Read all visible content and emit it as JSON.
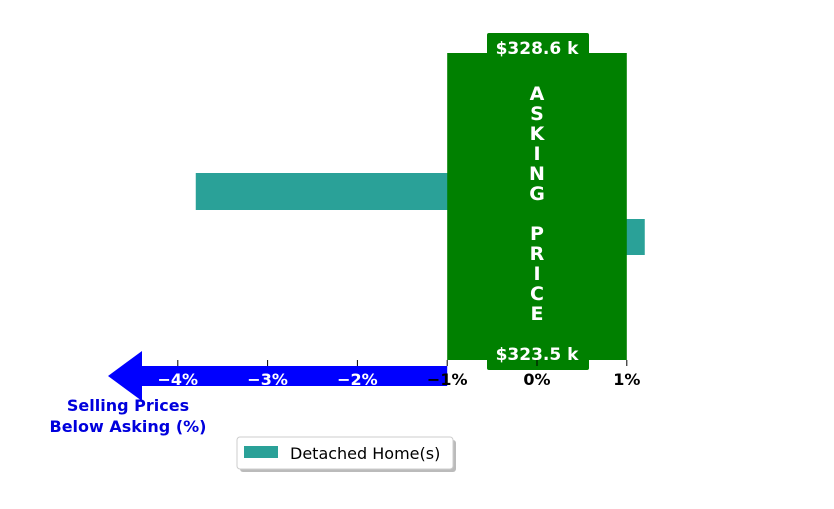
{
  "chart_data": {
    "type": "bar",
    "orientation": "horizontal",
    "series": [
      {
        "name": "Detached Home(s)",
        "color": "#2aa198",
        "values": [
          -3.8,
          1.2
        ]
      }
    ],
    "xlim": [
      -5,
      1.5
    ],
    "xticks": [
      {
        "value": -4,
        "label": "−4%"
      },
      {
        "value": -3,
        "label": "−3%"
      },
      {
        "value": -2,
        "label": "−2%"
      },
      {
        "value": -1,
        "label": "−1%"
      },
      {
        "value": 0,
        "label": "0%"
      },
      {
        "value": 1,
        "label": "1%"
      }
    ],
    "asking_band": {
      "range": [
        -1,
        1
      ],
      "color": "#008000",
      "letters": [
        "A",
        "S",
        "K",
        "I",
        "N",
        "G",
        "",
        "P",
        "R",
        "I",
        "C",
        "E"
      ],
      "top_label": "$328.6 k",
      "bottom_label": "$323.5 k"
    },
    "arrow_color": "#0000ff",
    "xlabel_lines": [
      "Selling Prices",
      "Below Asking (%)"
    ],
    "legend": {
      "placement": "bottom-center",
      "entries": [
        "Detached Home(s)"
      ]
    },
    "grid": false
  }
}
